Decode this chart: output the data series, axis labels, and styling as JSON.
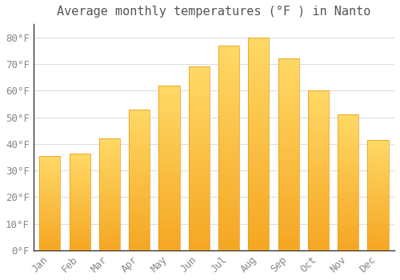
{
  "title": "Average monthly temperatures (°F ) in Nanto",
  "months": [
    "Jan",
    "Feb",
    "Mar",
    "Apr",
    "May",
    "Jun",
    "Jul",
    "Aug",
    "Sep",
    "Oct",
    "Nov",
    "Dec"
  ],
  "values": [
    35.5,
    36.5,
    42,
    53,
    62,
    69,
    77,
    80,
    72,
    60,
    51,
    41.5
  ],
  "bar_color_bottom": "#F5A623",
  "bar_color_top": "#FFD966",
  "bar_edge_color": "#E8960A",
  "background_color": "#FFFFFF",
  "grid_color": "#DDDDDD",
  "ylim": [
    0,
    85
  ],
  "yticks": [
    0,
    10,
    20,
    30,
    40,
    50,
    60,
    70,
    80
  ],
  "title_fontsize": 11,
  "tick_fontsize": 9,
  "label_color": "#888888",
  "title_color": "#555555",
  "figsize": [
    5.0,
    3.5
  ],
  "dpi": 100
}
